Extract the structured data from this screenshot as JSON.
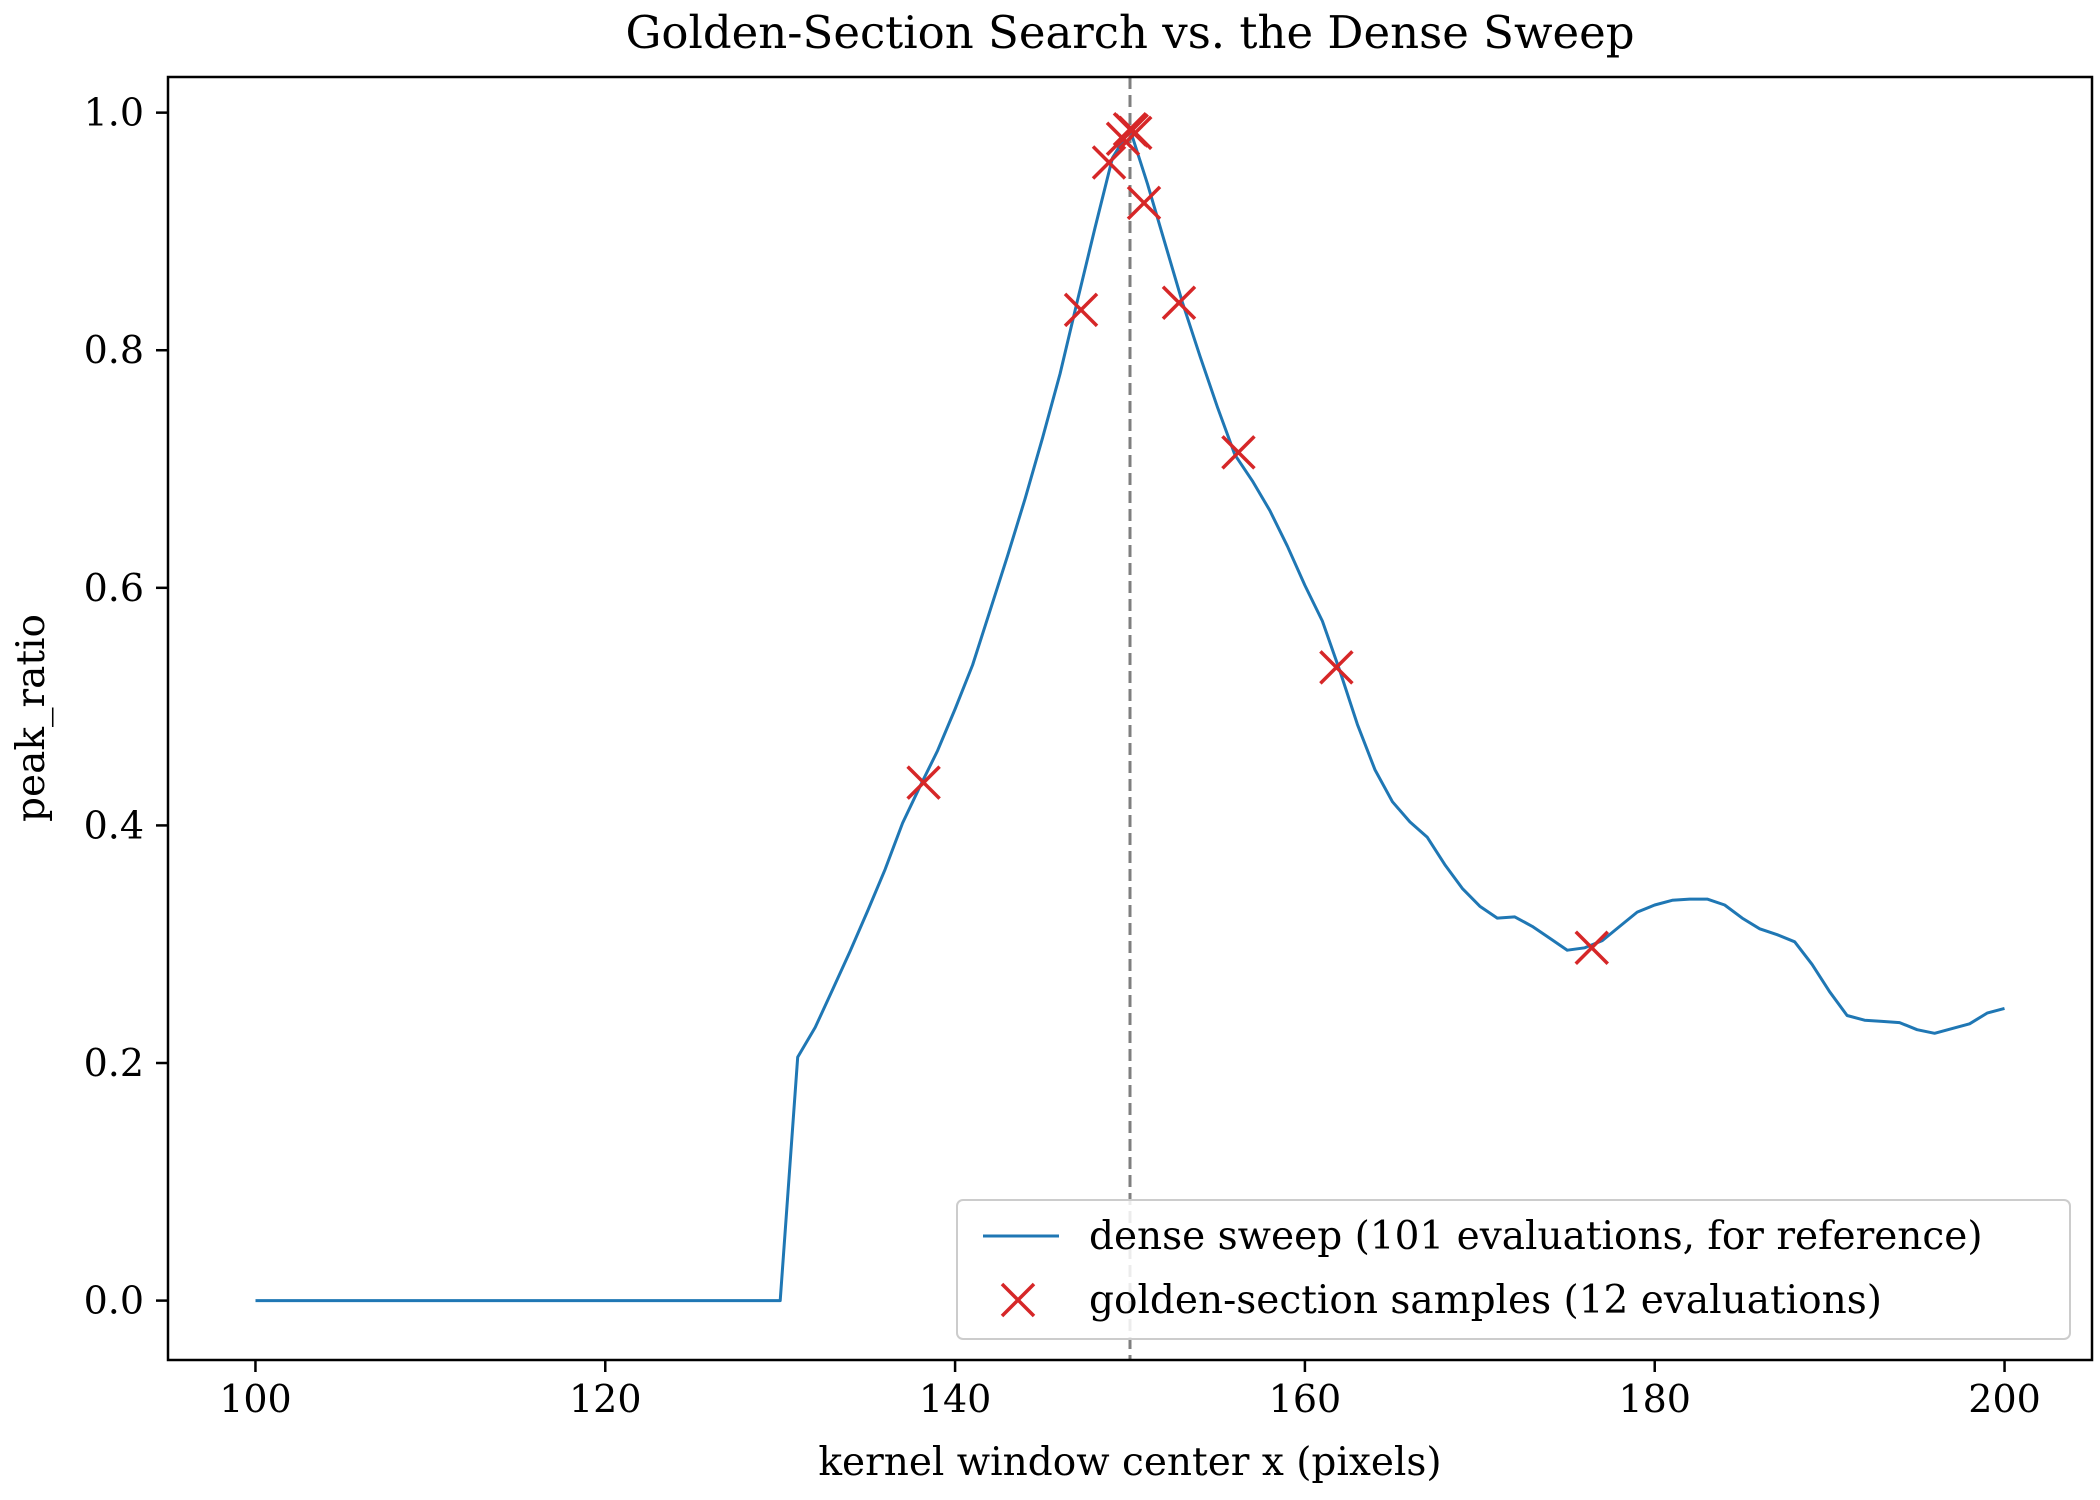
{
  "chart_data": {
    "type": "line",
    "title": "Golden-Section Search vs. the Dense Sweep",
    "xlabel": "kernel window center x (pixels)",
    "ylabel": "peak_ratio",
    "xlim": [
      95,
      205
    ],
    "ylim": [
      -0.05,
      1.03
    ],
    "xticks": [
      100,
      120,
      140,
      160,
      180,
      200
    ],
    "yticks": [
      0.0,
      0.2,
      0.4,
      0.6,
      0.8,
      1.0
    ],
    "xtick_labels": [
      "100",
      "120",
      "140",
      "160",
      "180",
      "200"
    ],
    "ytick_labels": [
      "0.0",
      "0.2",
      "0.4",
      "0.6",
      "0.8",
      "1.0"
    ],
    "grid": false,
    "legend_position": "bottom-right",
    "reference_line": {
      "x": 150,
      "style": "dashed",
      "color": "#7f7f7f"
    },
    "series": [
      {
        "name": "dense sweep (101 evaluations, for reference)",
        "kind": "line",
        "color": "#1f77b4",
        "x": [
          100,
          101,
          102,
          103,
          104,
          105,
          106,
          107,
          108,
          109,
          110,
          111,
          112,
          113,
          114,
          115,
          116,
          117,
          118,
          119,
          120,
          121,
          122,
          123,
          124,
          125,
          126,
          127,
          128,
          129,
          130,
          131,
          132,
          133,
          134,
          135,
          136,
          137,
          138,
          139,
          140,
          141,
          142,
          143,
          144,
          145,
          146,
          147,
          148,
          149,
          150,
          151,
          152,
          153,
          154,
          155,
          156,
          157,
          158,
          159,
          160,
          161,
          162,
          163,
          164,
          165,
          166,
          167,
          168,
          169,
          170,
          171,
          172,
          173,
          174,
          175,
          176,
          177,
          178,
          179,
          180,
          181,
          182,
          183,
          184,
          185,
          186,
          187,
          188,
          189,
          190,
          191,
          192,
          193,
          194,
          195,
          196,
          197,
          198,
          199,
          200
        ],
        "y": [
          0,
          0,
          0,
          0,
          0,
          0,
          0,
          0,
          0,
          0,
          0,
          0,
          0,
          0,
          0,
          0,
          0,
          0,
          0,
          0,
          0,
          0,
          0,
          0,
          0,
          0,
          0,
          0,
          0,
          0,
          0,
          0.205,
          0.23,
          0.262,
          0.294,
          0.328,
          0.363,
          0.402,
          0.433,
          0.463,
          0.498,
          0.535,
          0.581,
          0.627,
          0.675,
          0.726,
          0.78,
          0.842,
          0.903,
          0.962,
          0.986,
          0.94,
          0.89,
          0.84,
          0.795,
          0.752,
          0.712,
          0.69,
          0.665,
          0.635,
          0.602,
          0.572,
          0.53,
          0.485,
          0.447,
          0.42,
          0.403,
          0.39,
          0.367,
          0.347,
          0.332,
          0.322,
          0.323,
          0.315,
          0.305,
          0.295,
          0.297,
          0.303,
          0.315,
          0.327,
          0.333,
          0.337,
          0.338,
          0.338,
          0.333,
          0.322,
          0.313,
          0.308,
          0.302,
          0.283,
          0.26,
          0.24,
          0.236,
          0.235,
          0.234,
          0.228,
          0.225,
          0.229,
          0.233,
          0.242,
          0.246
        ]
      },
      {
        "name": "golden-section samples (12 evaluations)",
        "kind": "scatter",
        "marker": "x",
        "color": "#d62728",
        "x": [
          138.2,
          147.2,
          148.8,
          149.6,
          150.0,
          150.3,
          150.8,
          152.8,
          156.2,
          161.8,
          176.4,
          150.1
        ],
        "y": [
          0.436,
          0.834,
          0.958,
          0.978,
          0.986,
          0.983,
          0.924,
          0.84,
          0.714,
          0.533,
          0.297,
          0.985
        ]
      }
    ]
  }
}
